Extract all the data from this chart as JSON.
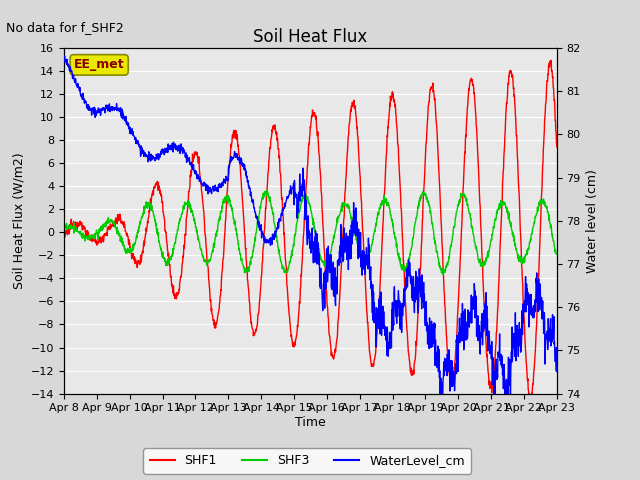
{
  "title": "Soil Heat Flux",
  "subtitle": "No data for f_SHF2",
  "xlabel": "Time",
  "ylabel_left": "Soil Heat Flux (W/m2)",
  "ylabel_right": "Water level (cm)",
  "ylim_left": [
    -14,
    16
  ],
  "ylim_right": [
    74.0,
    82.0
  ],
  "yticks_left": [
    -14,
    -12,
    -10,
    -8,
    -6,
    -4,
    -2,
    0,
    2,
    4,
    6,
    8,
    10,
    12,
    14,
    16
  ],
  "yticks_right": [
    74.0,
    75.0,
    76.0,
    77.0,
    78.0,
    79.0,
    80.0,
    81.0,
    82.0
  ],
  "legend_labels": [
    "SHF1",
    "SHF3",
    "WaterLevel_cm"
  ],
  "annotation_box": "EE_met",
  "annotation_box_facecolor": "#e8e800",
  "annotation_box_edgecolor": "#888800",
  "annotation_text_color": "#880000",
  "background_color": "#d8d8d8",
  "plot_bg_color": "#e8e8e8",
  "grid_color": "#ffffff",
  "title_fontsize": 12,
  "axis_fontsize": 9,
  "tick_fontsize": 8,
  "n_points": 1500,
  "xtick_labels": [
    "Apr 8",
    "Apr 9",
    "Apr 10",
    "Apr 11",
    "Apr 12",
    "Apr 13",
    "Apr 14",
    "Apr 15",
    "Apr 16",
    "Apr 17",
    "Apr 18",
    "Apr 19",
    "Apr 20",
    "Apr 21",
    "Apr 22",
    "Apr 23"
  ],
  "shf1_color": "#ff0000",
  "shf3_color": "#00cc00",
  "water_color": "#0000ff",
  "linewidth": 1.0
}
